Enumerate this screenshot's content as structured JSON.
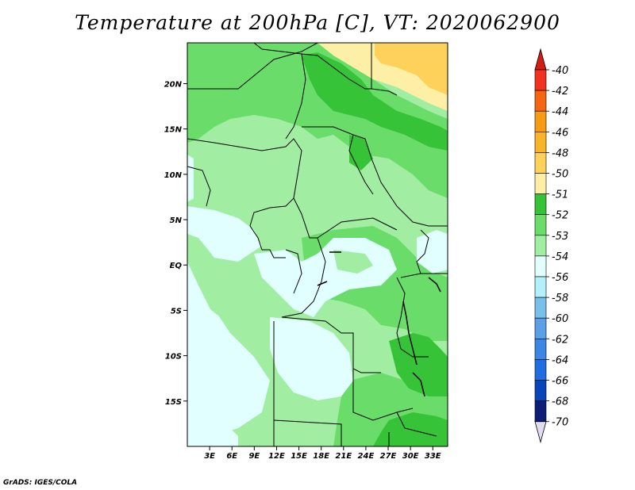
{
  "chart_data": {
    "type": "heatmap",
    "title": "Temperature at 200hPa [C], VT: 2020062900",
    "variable": "Temperature",
    "level": "200hPa",
    "units": "C",
    "valid_time": "2020062900",
    "x_ticks": [
      "3E",
      "6E",
      "9E",
      "12E",
      "15E",
      "18E",
      "21E",
      "24E",
      "27E",
      "30E",
      "33E"
    ],
    "y_ticks": [
      "20N",
      "15N",
      "10N",
      "5N",
      "EQ",
      "5S",
      "10S",
      "15S"
    ],
    "x_range_deg": [
      0,
      35
    ],
    "y_range_deg": [
      -20,
      24.5
    ],
    "colorbar": {
      "labels": [
        "-40",
        "-42",
        "-44",
        "-46",
        "-48",
        "-50",
        "-51",
        "-52",
        "-53",
        "-54",
        "-56",
        "-58",
        "-60",
        "-62",
        "-64",
        "-66",
        "-68",
        "-70"
      ],
      "colors": [
        "#f0321e",
        "#f5640f",
        "#f79b14",
        "#fab428",
        "#fed25a",
        "#fdf0a6",
        "#37c337",
        "#69dc69",
        "#a1eda1",
        "#e0fffe",
        "#b4f0fa",
        "#78bfea",
        "#5aa0e6",
        "#3c87e6",
        "#1f6ee1",
        "#0a46b9",
        "#0a1e78"
      ],
      "top_arrow_color": "#d21e14",
      "bottom_arrow_color": "#e1dcf0"
    },
    "dominant_values": [
      "-53",
      "-54",
      "-52",
      "-50"
    ]
  },
  "credit": "GrADS: IGES/COLA"
}
